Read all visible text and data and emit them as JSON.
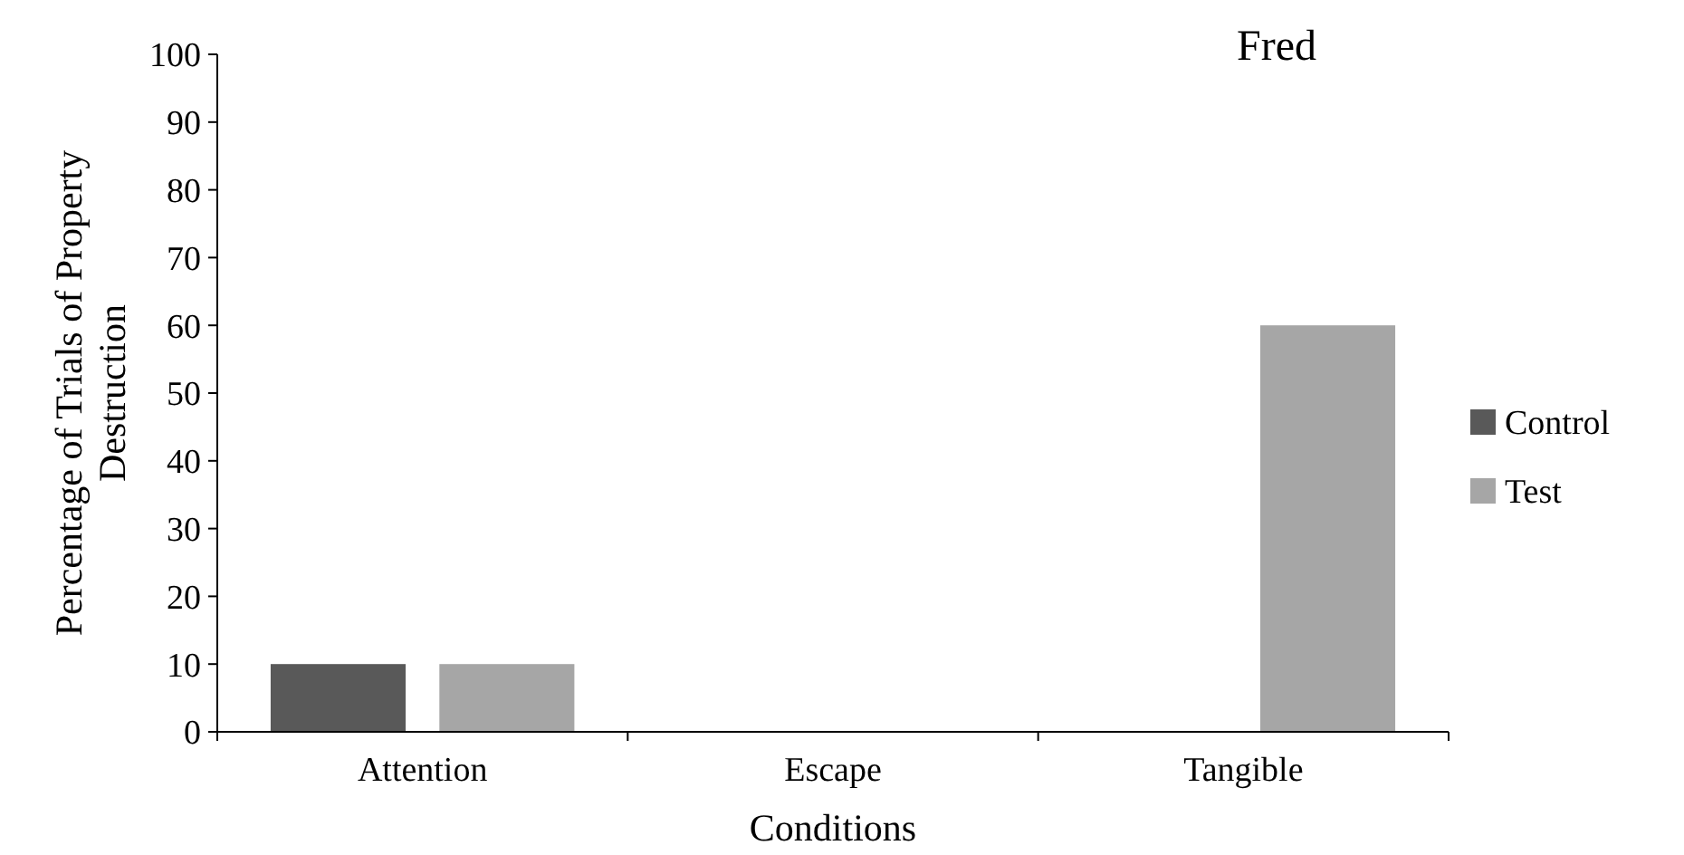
{
  "chart_data": {
    "type": "bar",
    "title": "Fred",
    "xlabel": "Conditions",
    "ylabel": "Percentage of Trials of Property Destruction",
    "categories": [
      "Attention",
      "Escape",
      "Tangible"
    ],
    "series": [
      {
        "name": "Control",
        "color": "#595959",
        "values": [
          10,
          0,
          0
        ]
      },
      {
        "name": "Test",
        "color": "#a6a6a6",
        "values": [
          10,
          0,
          60
        ]
      }
    ],
    "ylim": [
      0,
      100
    ],
    "yticks": [
      0,
      10,
      20,
      30,
      40,
      50,
      60,
      70,
      80,
      90,
      100
    ],
    "grid": false,
    "legend": "right"
  }
}
